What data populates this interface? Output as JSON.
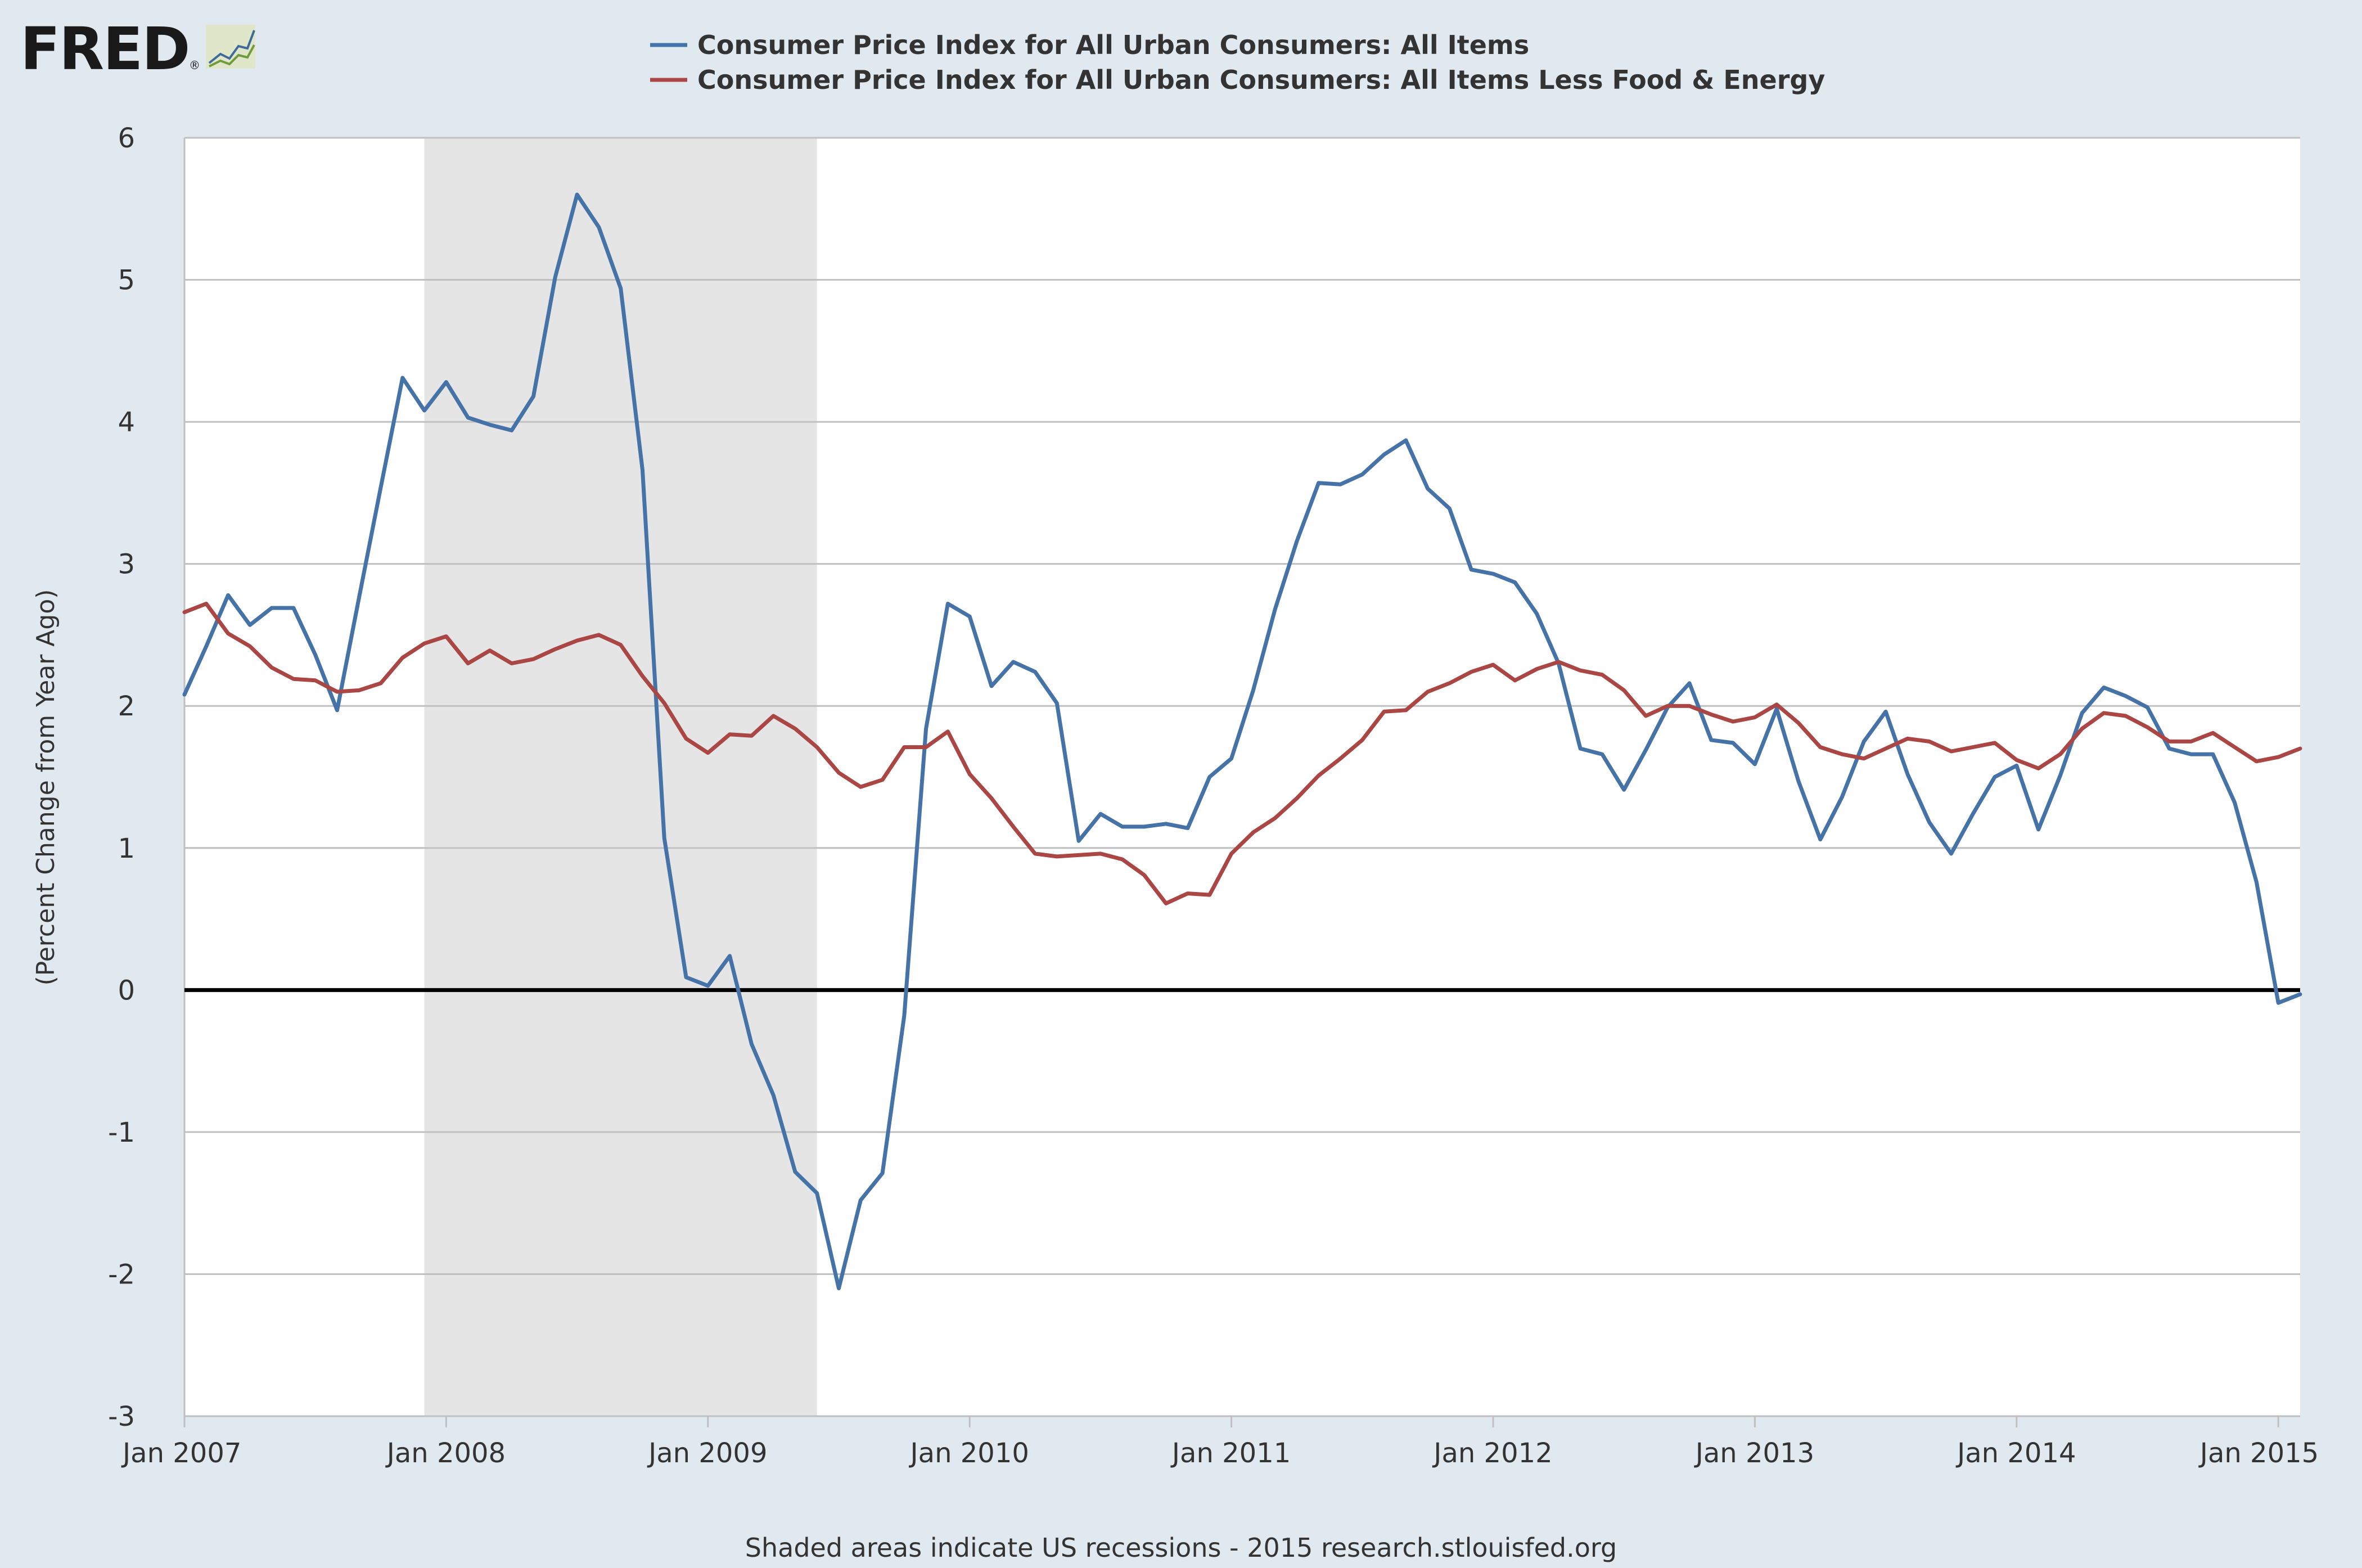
{
  "logo": {
    "text": "FRED",
    "registered": "®"
  },
  "caption": "Shaded areas indicate US recessions - 2015 research.stlouisfed.org",
  "colors": {
    "background": "#e1e9f0",
    "plot_bg": "#ffffff",
    "grid": "#c0c0c0",
    "recession": "#e5e5e5",
    "zero_line": "#000000",
    "series_all_items": "#4572a7",
    "series_core": "#aa4643"
  },
  "chart_data": {
    "type": "line",
    "title": "",
    "xlabel": "",
    "ylabel": "(Percent Change from Year Ago)",
    "ylim": [
      -3,
      6
    ],
    "yticks": [
      -3,
      -2,
      -1,
      0,
      1,
      2,
      3,
      4,
      5,
      6
    ],
    "x_start": "2007-01",
    "x_end": "2015-02",
    "x_tick_labels": [
      "Jan 2007",
      "Jan 2008",
      "Jan 2009",
      "Jan 2010",
      "Jan 2011",
      "Jan 2012",
      "Jan 2013",
      "Jan 2014",
      "Jan 2015"
    ],
    "recessions": [
      {
        "start": "2007-12",
        "end": "2009-06"
      }
    ],
    "series": [
      {
        "name": "Consumer Price Index for All Urban Consumers: All Items",
        "color": "#4572a7",
        "values": [
          2.08,
          2.42,
          2.78,
          2.57,
          2.69,
          2.69,
          2.36,
          1.97,
          2.76,
          3.54,
          4.31,
          4.08,
          4.28,
          4.03,
          3.98,
          3.94,
          4.18,
          5.02,
          5.6,
          5.37,
          4.94,
          3.66,
          1.07,
          0.09,
          0.03,
          0.24,
          -0.38,
          -0.74,
          -1.28,
          -1.43,
          -2.1,
          -1.48,
          -1.29,
          -0.18,
          1.84,
          2.72,
          2.63,
          2.14,
          2.31,
          2.24,
          2.02,
          1.05,
          1.24,
          1.15,
          1.15,
          1.17,
          1.14,
          1.5,
          1.63,
          2.11,
          2.68,
          3.16,
          3.57,
          3.56,
          3.63,
          3.77,
          3.87,
          3.53,
          3.39,
          2.96,
          2.93,
          2.87,
          2.65,
          2.3,
          1.7,
          1.66,
          1.41,
          1.69,
          1.99,
          2.16,
          1.76,
          1.74,
          1.59,
          1.98,
          1.47,
          1.06,
          1.36,
          1.75,
          1.96,
          1.52,
          1.18,
          0.96,
          1.24,
          1.5,
          1.58,
          1.13,
          1.51,
          1.95,
          2.13,
          2.07,
          1.99,
          1.7,
          1.66,
          1.66,
          1.32,
          0.76,
          -0.09,
          -0.03
        ]
      },
      {
        "name": "Consumer Price Index for All Urban Consumers: All Items Less Food & Energy",
        "color": "#aa4643",
        "values": [
          2.66,
          2.72,
          2.51,
          2.42,
          2.27,
          2.19,
          2.18,
          2.1,
          2.11,
          2.16,
          2.34,
          2.44,
          2.49,
          2.3,
          2.39,
          2.3,
          2.33,
          2.4,
          2.46,
          2.5,
          2.43,
          2.21,
          2.02,
          1.77,
          1.67,
          1.8,
          1.79,
          1.93,
          1.84,
          1.71,
          1.53,
          1.43,
          1.48,
          1.71,
          1.71,
          1.82,
          1.52,
          1.35,
          1.15,
          0.96,
          0.94,
          0.95,
          0.96,
          0.92,
          0.81,
          0.61,
          0.68,
          0.67,
          0.96,
          1.11,
          1.21,
          1.35,
          1.51,
          1.63,
          1.76,
          1.96,
          1.97,
          2.1,
          2.16,
          2.24,
          2.29,
          2.18,
          2.26,
          2.31,
          2.25,
          2.22,
          2.11,
          1.93,
          2.0,
          2.0,
          1.94,
          1.89,
          1.92,
          2.01,
          1.88,
          1.71,
          1.66,
          1.63,
          1.7,
          1.77,
          1.75,
          1.68,
          1.71,
          1.74,
          1.62,
          1.56,
          1.66,
          1.84,
          1.95,
          1.93,
          1.85,
          1.75,
          1.75,
          1.81,
          1.71,
          1.61,
          1.64,
          1.7
        ]
      }
    ]
  }
}
